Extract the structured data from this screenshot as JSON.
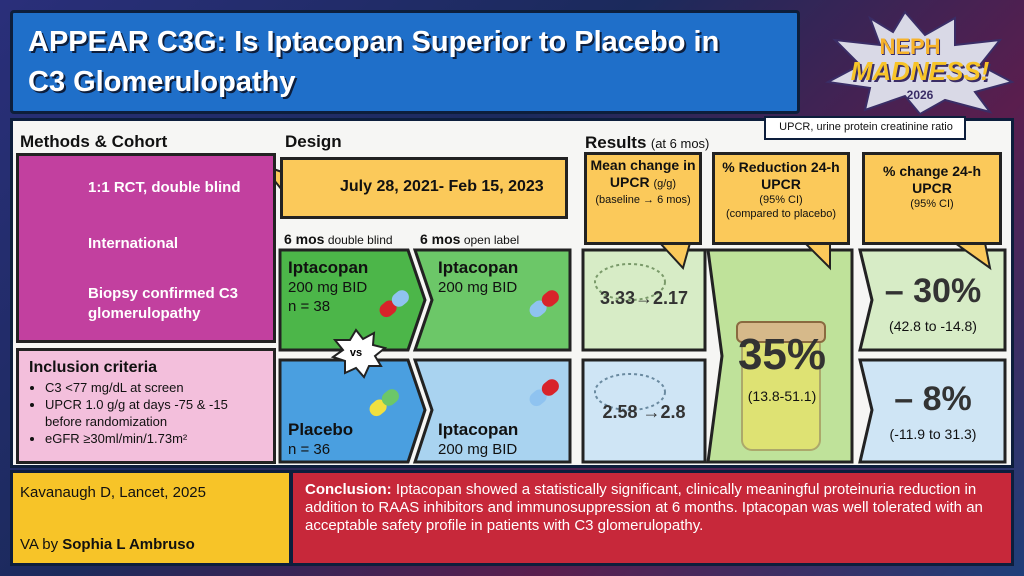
{
  "header": {
    "title": "APPEAR C3G: Is Iptacopan Superior to Placebo in C3 Glomerulopathy",
    "logo": {
      "line1": "NEPH",
      "line2": "MADNESS!",
      "year": "2026"
    },
    "abbreviation": "UPCR, urine protein creatinine ratio"
  },
  "methods": {
    "heading": "Methods & Cohort",
    "items": [
      "1:1 RCT, double blind",
      "International",
      "Biopsy confirmed C3 glomerulopathy"
    ]
  },
  "inclusion": {
    "heading": "Inclusion criteria",
    "items": [
      "C3 <77 mg/dL at screen",
      "UPCR 1.0 g/g at days -75 & -15 before randomization",
      "eGFR ≥30ml/min/1.73m²"
    ]
  },
  "design": {
    "heading": "Design",
    "dates": "July 28, 2021- Feb 15, 2023",
    "phase1": {
      "duration": "6 mos",
      "label": "double blind"
    },
    "phase2": {
      "duration": "6 mos",
      "label": "open label"
    },
    "versus": "vs",
    "arms": [
      {
        "name": "Iptacopan",
        "dose": "200 mg BID",
        "n": "n = 38"
      },
      {
        "name": "Iptacopan",
        "dose": "200 mg BID"
      },
      {
        "name": "Placebo",
        "n": "n = 36"
      },
      {
        "name": "Iptacopan",
        "dose": "200 mg BID"
      }
    ]
  },
  "results": {
    "heading": "Results",
    "subheading": "(at 6 mos)",
    "mean_change": {
      "title": "Mean change in UPCR",
      "unit": "(g/g)",
      "note": "(baseline → 6 mos)",
      "iptacopan": "3.33→2.17",
      "placebo": "2.58 →2.8"
    },
    "reduction": {
      "title": "% Reduction 24-h UPCR",
      "ci": "(95% CI)",
      "note": "(compared to placebo)",
      "value": "35%",
      "range": "(13.8-51.1)"
    },
    "pct_change": {
      "title": "% change 24-h UPCR",
      "ci": "(95% CI)",
      "iptacopan": "– 30%",
      "iptacopan_range": "(42.8 to -14.8)",
      "placebo": "– 8%",
      "placebo_range": "(-11.9 to 31.3)"
    }
  },
  "footer": {
    "citation": "Kavanaugh D, Lancet, 2025",
    "author_prefix": "VA by",
    "author": "Sophia L Ambruso",
    "conclusion_label": "Conclusion:",
    "conclusion": "Iptacopan showed a statistically significant, clinically meaningful proteinuria reduction in addition to RAAS inhibitors and immunosuppression at 6 months. Iptacopan was well tolerated with an acceptable safety profile in patients with C3 glomerulopathy."
  }
}
